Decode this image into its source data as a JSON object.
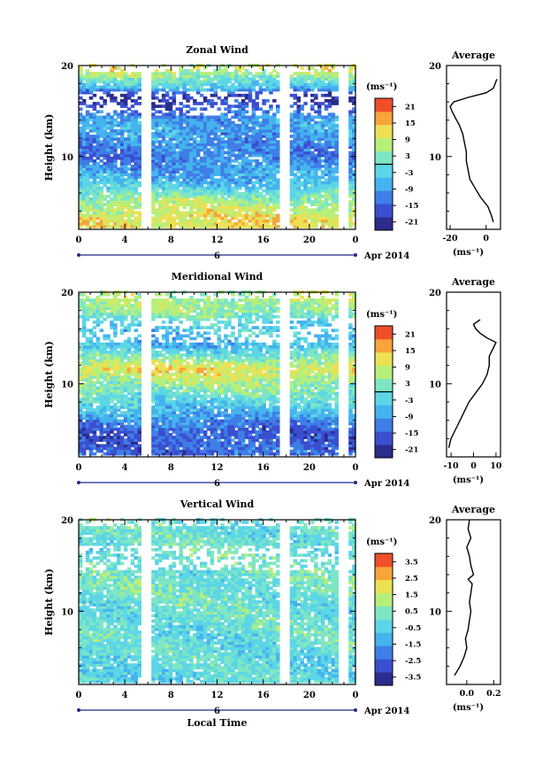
{
  "chart_data": [
    {
      "type": "heatmap",
      "title": "Zonal Wind",
      "ylabel": "Height (km)",
      "ylim": [
        2,
        20
      ],
      "yticks": [
        "20",
        "10"
      ],
      "xticks": [
        "0",
        "4",
        "8",
        "12",
        "16",
        "20",
        "0"
      ],
      "xlim": [
        0,
        24
      ],
      "date_day": "6",
      "date_label": "Apr 2014",
      "colorbar": {
        "unit": "(ms⁻¹)",
        "ticks": [
          "21",
          "15",
          "9",
          "3",
          "-3",
          "-9",
          "-15",
          "-21"
        ],
        "range": [
          -24,
          24
        ]
      },
      "average": {
        "title": "Average",
        "xlabel": "(ms⁻¹)",
        "xticks": [
          "-20",
          "0"
        ],
        "xlim": [
          -22,
          8
        ],
        "heights": [
          2.8,
          3.5,
          4.5,
          5.5,
          6.5,
          7.5,
          8.5,
          9.5,
          10.5,
          11.5,
          12.5,
          13.5,
          14.2,
          15,
          15.5,
          16,
          16.5,
          17,
          17.5,
          18,
          18.5
        ],
        "values": [
          4,
          3,
          1,
          -3,
          -6,
          -9,
          -10,
          -11,
          -11,
          -12,
          -13,
          -15,
          -17,
          -19,
          -20,
          -18,
          -10,
          0,
          4,
          5,
          6
        ]
      },
      "samples": [
        {
          "h": 19.5,
          "v": 10
        },
        {
          "h": 17.5,
          "v": -5
        },
        {
          "h": 16.5,
          "v": -20
        },
        {
          "h": 13.5,
          "v": -8
        },
        {
          "h": 10,
          "v": -12
        },
        {
          "h": 7,
          "v": -6
        },
        {
          "h": 5,
          "v": 6
        },
        {
          "h": 3,
          "v": 12
        }
      ]
    },
    {
      "type": "heatmap",
      "title": "Meridional Wind",
      "ylabel": "Height (km)",
      "ylim": [
        2,
        20
      ],
      "yticks": [
        "20",
        "10"
      ],
      "xticks": [
        "0",
        "4",
        "8",
        "12",
        "16",
        "20",
        "0"
      ],
      "xlim": [
        0,
        24
      ],
      "date_day": "6",
      "date_label": "Apr 2014",
      "colorbar": {
        "unit": "(ms⁻¹)",
        "ticks": [
          "21",
          "15",
          "9",
          "3",
          "-3",
          "-9",
          "-15",
          "-21"
        ],
        "range": [
          -24,
          24
        ]
      },
      "average": {
        "title": "Average",
        "xlabel": "(ms⁻¹)",
        "xticks": [
          "-10",
          "0",
          "10"
        ],
        "xlim": [
          -12,
          12
        ],
        "heights": [
          3,
          4,
          5,
          6,
          7,
          8,
          9,
          10,
          11,
          12,
          13,
          13.5,
          14,
          14.5,
          15,
          15.5,
          16,
          16.5,
          17
        ],
        "values": [
          -11,
          -10,
          -8,
          -6,
          -4,
          -2,
          1,
          4,
          6,
          7,
          7,
          8,
          9,
          10,
          6,
          3,
          1,
          0,
          3
        ]
      },
      "samples": [
        {
          "h": 18,
          "v": 6
        },
        {
          "h": 16.5,
          "v": -3
        },
        {
          "h": 14,
          "v": -6
        },
        {
          "h": 11.5,
          "v": 12
        },
        {
          "h": 9,
          "v": 2
        },
        {
          "h": 6.5,
          "v": -8
        },
        {
          "h": 4.5,
          "v": -16
        },
        {
          "h": 3,
          "v": -14
        }
      ]
    },
    {
      "type": "heatmap",
      "title": "Vertical Wind",
      "ylabel": "Height (km)",
      "xlabel": "Local Time",
      "ylim": [
        2,
        20
      ],
      "yticks": [
        "20",
        "10"
      ],
      "xticks": [
        "0",
        "4",
        "8",
        "12",
        "16",
        "20",
        "0"
      ],
      "xlim": [
        0,
        24
      ],
      "date_day": "6",
      "date_label": "Apr 2014",
      "colorbar": {
        "unit": "(ms⁻¹)",
        "ticks": [
          "3.5",
          "2.5",
          "1.5",
          "0.5",
          "-0.5",
          "-1.5",
          "-2.5",
          "-3.5"
        ],
        "range": [
          -4,
          4
        ]
      },
      "average": {
        "title": "Average",
        "xlabel": "(ms⁻¹)",
        "xticks": [
          "0.0",
          "0.2"
        ],
        "xlim": [
          -0.15,
          0.25
        ],
        "heights": [
          3,
          4,
          5,
          6,
          7,
          8,
          9,
          10,
          11,
          12,
          13,
          13.5,
          14,
          15,
          16,
          17,
          18,
          19,
          20
        ],
        "values": [
          -0.09,
          -0.05,
          -0.02,
          0.0,
          -0.01,
          0.01,
          0.02,
          0.03,
          0.02,
          0.03,
          0.04,
          0.01,
          0.05,
          0.03,
          0.02,
          0.0,
          0.03,
          0.01,
          0.02
        ]
      },
      "samples": [
        {
          "h": 18,
          "v": 0.0
        },
        {
          "h": 14,
          "v": 0.2
        },
        {
          "h": 10,
          "v": 0.0
        },
        {
          "h": 6,
          "v": -0.1
        },
        {
          "h": 3,
          "v": -0.3
        }
      ]
    }
  ],
  "colors": {
    "colormap": [
      "#2b2c8c",
      "#3a4fd0",
      "#3f7ee6",
      "#45b3ee",
      "#5cd6e6",
      "#7ee6c4",
      "#b6ef7a",
      "#ece154",
      "#f7a53a",
      "#ef4f2a"
    ],
    "axis": "#000000",
    "date_line": "#1f2b8a"
  }
}
